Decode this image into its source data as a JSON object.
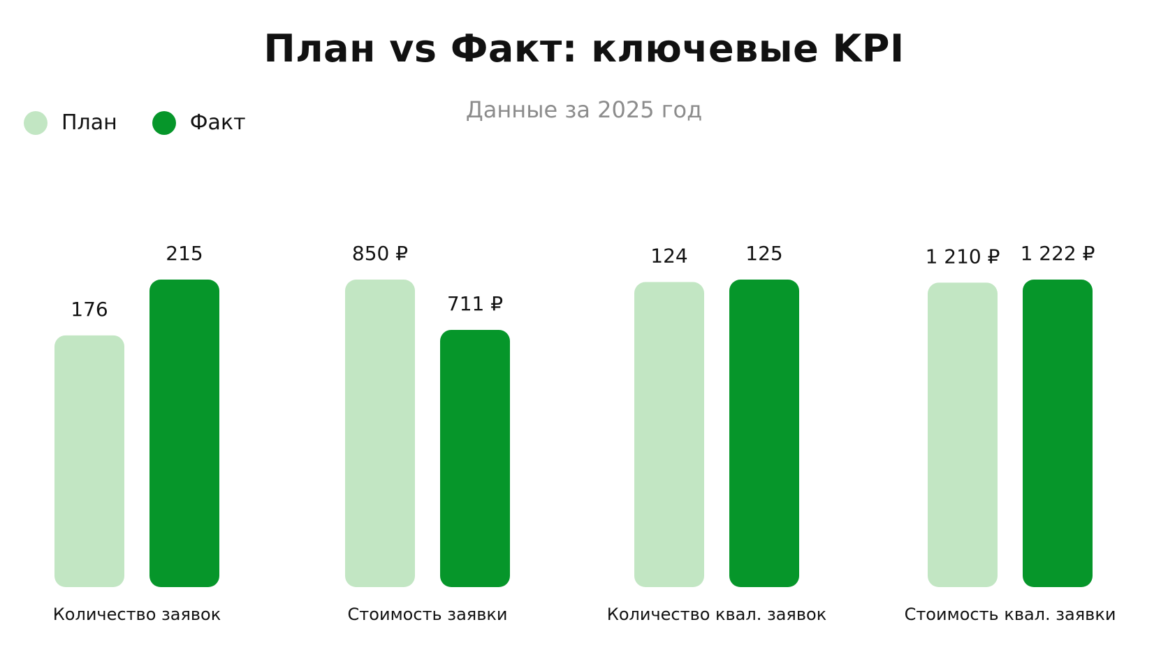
{
  "colors": {
    "plan": "#c2e6c3",
    "fact": "#06962a"
  },
  "chart_data": {
    "type": "bar",
    "title": "План vs Факт: ключевые KPI",
    "subtitle": "Данные за 2025 год",
    "legend_position": "top-left",
    "grid": false,
    "categories": [
      "Количество заявок",
      "Стоимость заявки",
      "Количество квал. заявок",
      "Стоимость квал. заявки"
    ],
    "series": [
      {
        "name": "План",
        "values": [
          176,
          850,
          124,
          1210
        ],
        "labels": [
          "176",
          "850 ₽",
          "124",
          "1 210 ₽"
        ]
      },
      {
        "name": "Факт",
        "values": [
          215,
          711,
          125,
          1222
        ],
        "labels": [
          "215",
          "711 ₽",
          "125",
          "1 222 ₽"
        ]
      }
    ]
  }
}
